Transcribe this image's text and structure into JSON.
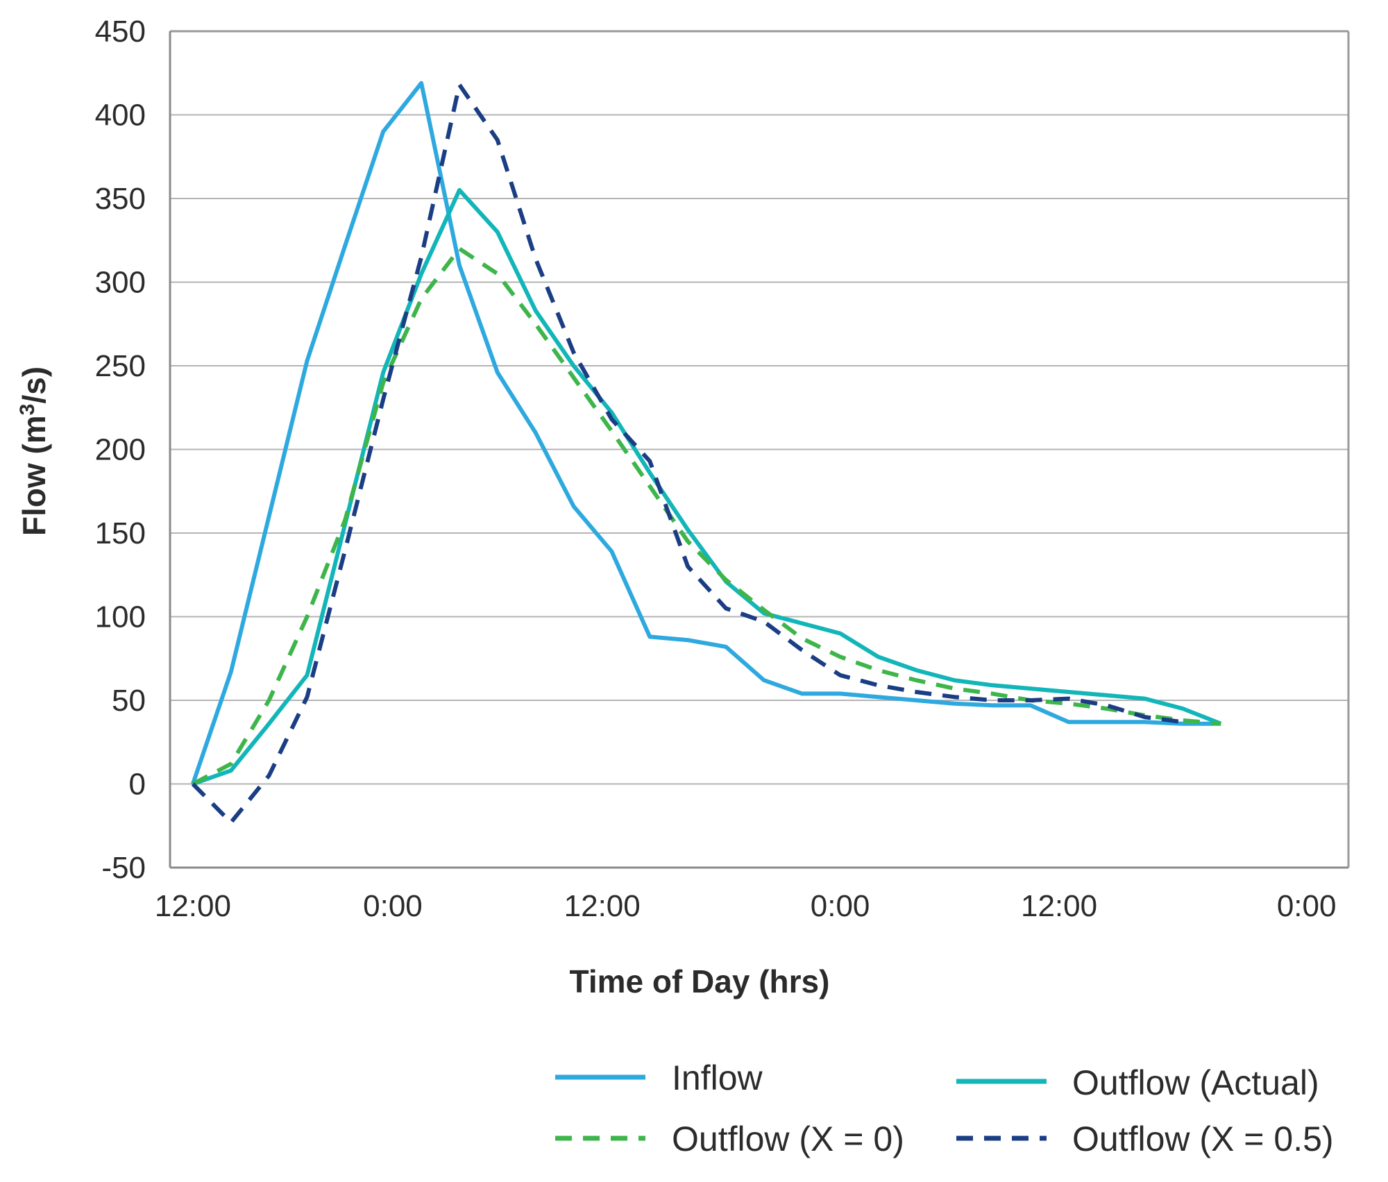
{
  "chart_data": {
    "type": "line",
    "title": "",
    "xlabel": "Time of Day (hrs)",
    "ylabel": "Flow (m³/s)",
    "ylabel_main": "Flow (m",
    "ylabel_sup": "3",
    "ylabel_end": "/s)",
    "x_unit": "hours",
    "xlim": [
      -1.2,
      60.7
    ],
    "ylim": [
      -50,
      450
    ],
    "y_ticks": [
      -50,
      0,
      50,
      100,
      150,
      200,
      250,
      300,
      350,
      400,
      450
    ],
    "x_ticks": [
      {
        "x": 0,
        "label": "12:00"
      },
      {
        "x": 10.5,
        "label": "0:00"
      },
      {
        "x": 21.5,
        "label": "12:00"
      },
      {
        "x": 34,
        "label": "0:00"
      },
      {
        "x": 45.5,
        "label": "12:00"
      },
      {
        "x": 58.5,
        "label": "0:00"
      }
    ],
    "grid": true,
    "legend_position": "bottom",
    "series": [
      {
        "name": "Inflow",
        "style": "solid",
        "color": "#2ea9df",
        "points": [
          [
            0,
            0
          ],
          [
            2,
            67
          ],
          [
            4,
            160
          ],
          [
            6,
            253
          ],
          [
            8,
            322
          ],
          [
            10,
            390
          ],
          [
            12,
            419
          ],
          [
            14,
            310
          ],
          [
            16,
            246
          ],
          [
            18,
            210
          ],
          [
            20,
            166
          ],
          [
            22,
            139
          ],
          [
            24,
            88
          ],
          [
            26,
            86
          ],
          [
            28,
            82
          ],
          [
            30,
            62
          ],
          [
            32,
            54
          ],
          [
            34,
            54
          ],
          [
            36,
            52
          ],
          [
            38,
            50
          ],
          [
            40,
            48
          ],
          [
            42,
            47
          ],
          [
            44,
            47
          ],
          [
            46,
            37
          ],
          [
            48,
            37
          ],
          [
            50,
            37
          ],
          [
            52,
            36
          ],
          [
            54,
            36
          ]
        ]
      },
      {
        "name": "Outflow (Actual)",
        "style": "solid",
        "color": "#12b5b8",
        "points": [
          [
            0,
            0
          ],
          [
            2,
            8
          ],
          [
            4,
            36
          ],
          [
            6,
            65
          ],
          [
            10,
            246
          ],
          [
            12,
            305
          ],
          [
            14,
            355
          ],
          [
            16,
            330
          ],
          [
            18,
            283
          ],
          [
            20,
            250
          ],
          [
            22,
            222
          ],
          [
            24,
            186
          ],
          [
            26,
            152
          ],
          [
            28,
            121
          ],
          [
            30,
            102
          ],
          [
            32,
            96
          ],
          [
            34,
            90
          ],
          [
            36,
            76
          ],
          [
            38,
            68
          ],
          [
            40,
            62
          ],
          [
            42,
            59
          ],
          [
            44,
            57
          ],
          [
            46,
            55
          ],
          [
            48,
            53
          ],
          [
            50,
            51
          ],
          [
            52,
            45
          ],
          [
            54,
            36
          ]
        ]
      },
      {
        "name": "Outflow (X = 0)",
        "style": "dashed",
        "color": "#3db54a",
        "points": [
          [
            0,
            0
          ],
          [
            2,
            12
          ],
          [
            4,
            50
          ],
          [
            6,
            100
          ],
          [
            8,
            158
          ],
          [
            10,
            240
          ],
          [
            12,
            290
          ],
          [
            14,
            320
          ],
          [
            16,
            305
          ],
          [
            18,
            275
          ],
          [
            20,
            243
          ],
          [
            22,
            211
          ],
          [
            24,
            178
          ],
          [
            26,
            145
          ],
          [
            28,
            122
          ],
          [
            30,
            104
          ],
          [
            32,
            87
          ],
          [
            34,
            76
          ],
          [
            36,
            68
          ],
          [
            38,
            62
          ],
          [
            40,
            57
          ],
          [
            42,
            54
          ],
          [
            44,
            50
          ],
          [
            46,
            48
          ],
          [
            48,
            45
          ],
          [
            50,
            41
          ],
          [
            52,
            38
          ],
          [
            54,
            36
          ]
        ]
      },
      {
        "name": "Outflow (X = 0.5)",
        "style": "dashed",
        "color": "#1a3d84",
        "points": [
          [
            0,
            0
          ],
          [
            2,
            -23
          ],
          [
            4,
            5
          ],
          [
            6,
            52
          ],
          [
            8,
            140
          ],
          [
            10,
            230
          ],
          [
            12,
            315
          ],
          [
            14,
            418
          ],
          [
            16,
            385
          ],
          [
            18,
            314
          ],
          [
            20,
            258
          ],
          [
            22,
            218
          ],
          [
            24,
            193
          ],
          [
            26,
            130
          ],
          [
            28,
            105
          ],
          [
            30,
            97
          ],
          [
            32,
            80
          ],
          [
            34,
            65
          ],
          [
            36,
            59
          ],
          [
            38,
            55
          ],
          [
            40,
            52
          ],
          [
            42,
            50
          ],
          [
            44,
            50
          ],
          [
            46,
            51
          ],
          [
            48,
            47
          ],
          [
            50,
            40
          ],
          [
            52,
            37
          ]
        ]
      }
    ]
  }
}
